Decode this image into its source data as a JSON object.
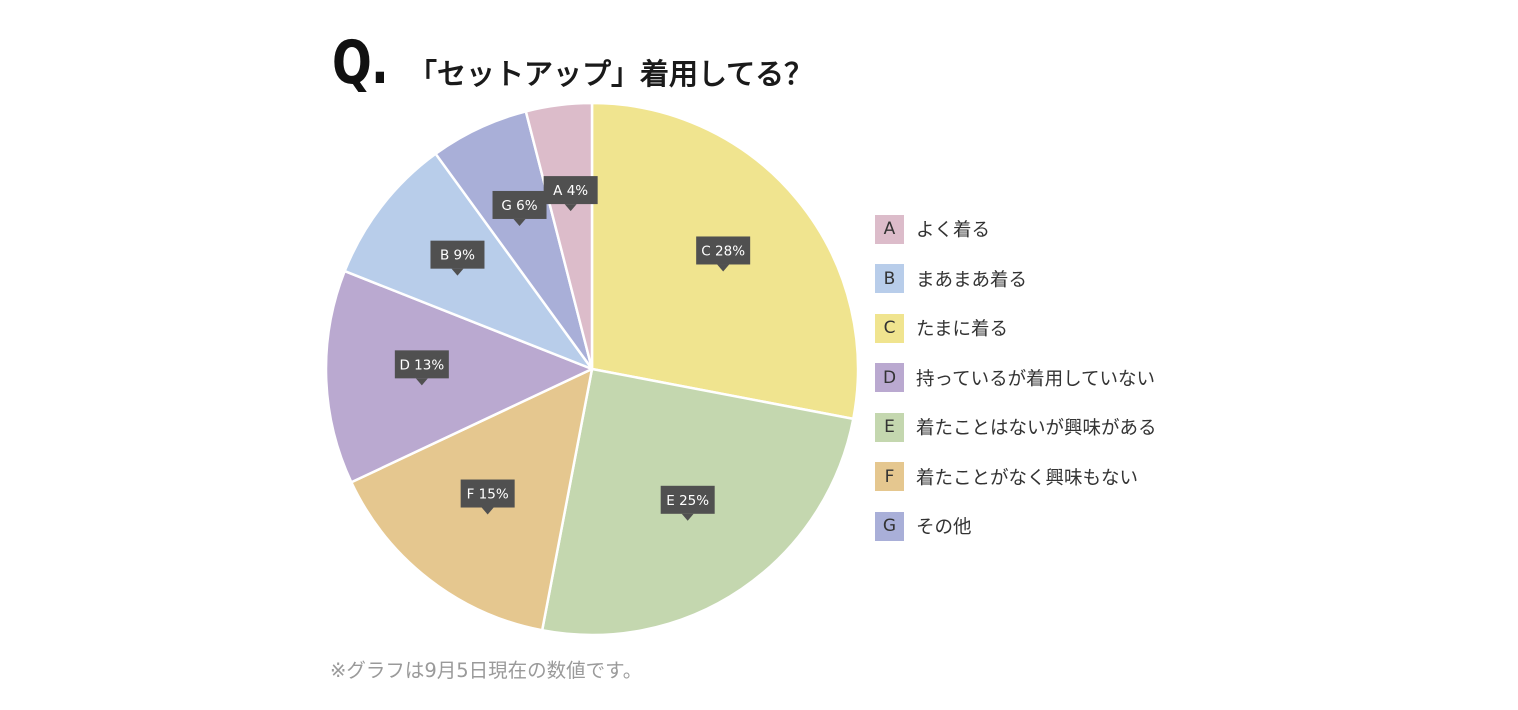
{
  "header": {
    "q_mark": "Q.",
    "title": "「セットアップ」着用してる？"
  },
  "footnote": "※グラフは9月5日現在の数値です。",
  "colors": {
    "A": "#dcbcca",
    "B": "#b8cdea",
    "C": "#f0e48f",
    "D": "#baa9d0",
    "E": "#c4d7af",
    "F": "#e5c78f",
    "G": "#a9afd8",
    "label_bg": "#505050",
    "label_text": "#ffffff",
    "slice_border": "#ffffff"
  },
  "chart_data": {
    "type": "pie",
    "title": "「セットアップ」着用してる？",
    "slices": [
      {
        "key": "C",
        "label": "たまに着る",
        "value": 28,
        "tag": "C 28%"
      },
      {
        "key": "E",
        "label": "着たことはないが興味がある",
        "value": 25,
        "tag": "E 25%"
      },
      {
        "key": "F",
        "label": "着たことがなく興味もない",
        "value": 15,
        "tag": "F 15%"
      },
      {
        "key": "D",
        "label": "持っているが着用していない",
        "value": 13,
        "tag": "D 13%"
      },
      {
        "key": "B",
        "label": "まあまあ着る",
        "value": 9,
        "tag": "B 9%"
      },
      {
        "key": "G",
        "label": "その他",
        "value": 6,
        "tag": "G 6%"
      },
      {
        "key": "A",
        "label": "よく着る",
        "value": 4,
        "tag": "A 4%"
      }
    ],
    "legend": [
      {
        "key": "A",
        "label": "よく着る"
      },
      {
        "key": "B",
        "label": "まあまあ着る"
      },
      {
        "key": "C",
        "label": "たまに着る"
      },
      {
        "key": "D",
        "label": "持っているが着用していない"
      },
      {
        "key": "E",
        "label": "着たことはないが興味がある"
      },
      {
        "key": "F",
        "label": "着たことがなく興味もない"
      },
      {
        "key": "G",
        "label": "その他"
      }
    ],
    "legend_position": "right"
  }
}
